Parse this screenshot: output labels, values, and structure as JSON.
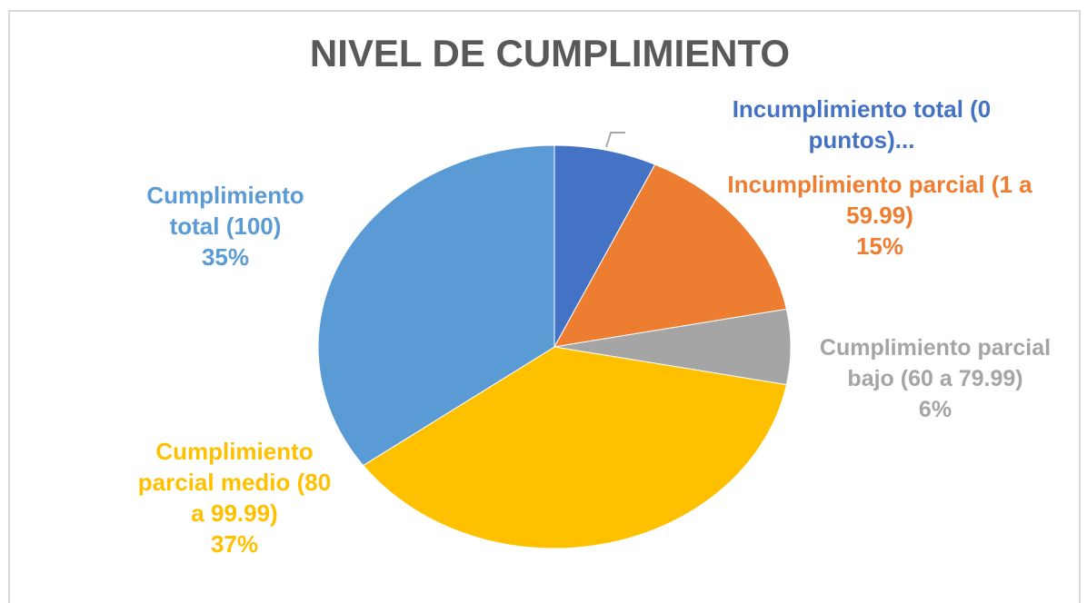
{
  "chart_data": {
    "type": "pie",
    "title": "NIVEL DE CUMPLIMIENTO",
    "categories": [
      "Incumplimiento total (0 puntos)...",
      "Incumplimiento parcial (1 a 59.99)",
      "Cumplimiento parcial bajo (60 a 79.99)",
      "Cumplimiento parcial medio (80 a 99.99)",
      "Cumplimiento total (100)"
    ],
    "values": [
      7,
      15,
      6,
      37,
      35
    ],
    "value_labels": [
      null,
      "15%",
      "6%",
      "37%",
      "35%"
    ],
    "colors": [
      "#4472c4",
      "#ed7d31",
      "#a5a5a5",
      "#ffc000",
      "#5b9bd5"
    ]
  }
}
